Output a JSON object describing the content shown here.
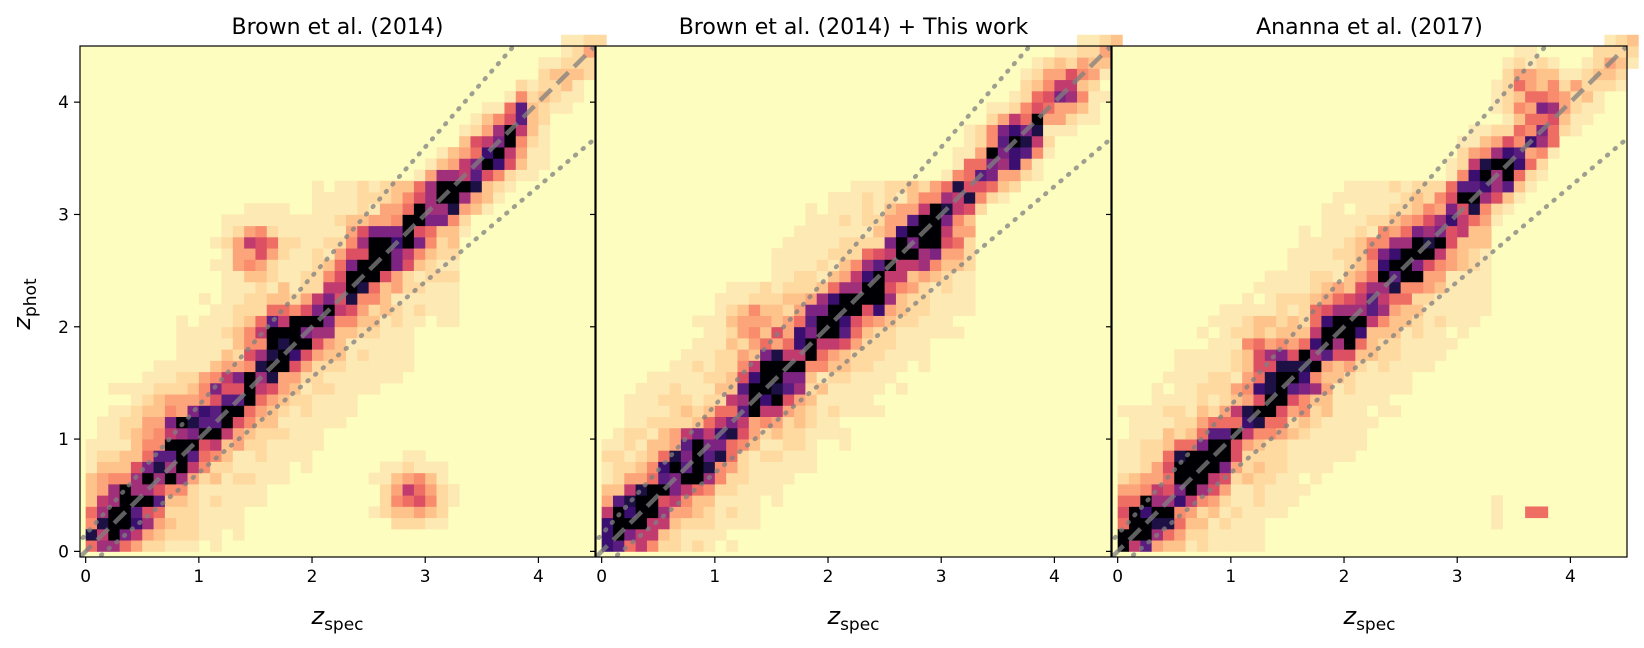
{
  "chart_data": [
    {
      "type": "heatmap",
      "title": "Brown et al. (2014)",
      "xlabel": "z",
      "xlabel_sub": "spec",
      "ylabel": "z",
      "ylabel_sub": "phot",
      "xlim": [
        -0.05,
        4.5
      ],
      "ylim": [
        -0.05,
        4.5
      ],
      "xticks": [
        0,
        1,
        2,
        3,
        4
      ],
      "yticks": [
        0,
        1,
        2,
        3,
        4
      ],
      "one_to_one_line": true,
      "dotted_lines": true,
      "colormap": "magma_r",
      "density_points": [
        {
          "x": 0.35,
          "y": 0.4,
          "w": 1.0
        },
        {
          "x": 0.8,
          "y": 1.05,
          "w": 0.9
        },
        {
          "x": 1.2,
          "y": 1.3,
          "w": 0.7
        },
        {
          "x": 1.7,
          "y": 1.9,
          "w": 1.0
        },
        {
          "x": 2.6,
          "y": 2.7,
          "w": 0.8
        },
        {
          "x": 3.3,
          "y": 3.2,
          "w": 0.8
        },
        {
          "x": 2.9,
          "y": 0.5,
          "w": 0.7
        },
        {
          "x": 1.5,
          "y": 2.7,
          "w": 0.6
        },
        {
          "x": 3.7,
          "y": 3.6,
          "w": 0.6
        }
      ]
    },
    {
      "type": "heatmap",
      "title": "Brown et al. (2014) + This work",
      "xlabel": "z",
      "xlabel_sub": "spec",
      "xlim": [
        -0.05,
        4.5
      ],
      "ylim": [
        -0.05,
        4.5
      ],
      "xticks": [
        0,
        1,
        2,
        3,
        4
      ],
      "yticks": [
        0,
        1,
        2,
        3,
        4
      ],
      "one_to_one_line": true,
      "dotted_lines": true,
      "colormap": "magma_r",
      "density_points": [
        {
          "x": 0.3,
          "y": 0.3,
          "w": 1.0
        },
        {
          "x": 0.8,
          "y": 0.8,
          "w": 0.9
        },
        {
          "x": 1.5,
          "y": 1.5,
          "w": 0.9
        },
        {
          "x": 2.0,
          "y": 2.0,
          "w": 0.8
        },
        {
          "x": 2.4,
          "y": 2.3,
          "w": 0.8
        },
        {
          "x": 2.9,
          "y": 2.8,
          "w": 0.9
        },
        {
          "x": 3.6,
          "y": 3.6,
          "w": 0.8
        },
        {
          "x": 1.4,
          "y": 2.0,
          "w": 0.4
        },
        {
          "x": 4.05,
          "y": 4.1,
          "w": 0.6
        }
      ]
    },
    {
      "type": "heatmap",
      "title": "Ananna et al. (2017)",
      "xlabel": "z",
      "xlabel_sub": "spec",
      "xlim": [
        -0.05,
        4.5
      ],
      "ylim": [
        -0.05,
        4.5
      ],
      "xticks": [
        0,
        1,
        2,
        3,
        4
      ],
      "yticks": [
        0,
        1,
        2,
        3,
        4
      ],
      "one_to_one_line": true,
      "dotted_lines": true,
      "colormap": "magma_r",
      "density_points": [
        {
          "x": 0.25,
          "y": 0.3,
          "w": 1.0
        },
        {
          "x": 0.7,
          "y": 0.8,
          "w": 0.9
        },
        {
          "x": 1.5,
          "y": 1.5,
          "w": 0.9
        },
        {
          "x": 2.0,
          "y": 2.0,
          "w": 0.8
        },
        {
          "x": 2.5,
          "y": 2.6,
          "w": 0.9
        },
        {
          "x": 3.3,
          "y": 3.4,
          "w": 0.8
        },
        {
          "x": 1.3,
          "y": 1.8,
          "w": 0.4
        },
        {
          "x": 3.65,
          "y": 0.3,
          "w": 0.6
        },
        {
          "x": 3.65,
          "y": 4.1,
          "w": 0.6
        }
      ]
    }
  ],
  "colors": {
    "background": "#fcfdbf",
    "line": "#808080"
  }
}
